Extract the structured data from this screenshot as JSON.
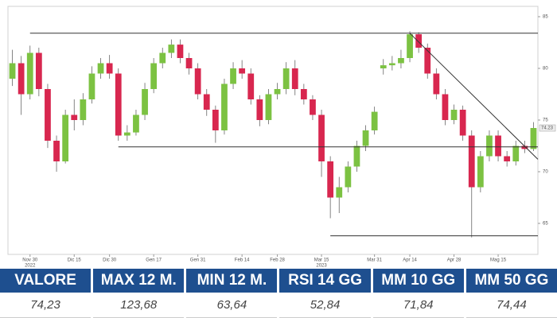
{
  "chart_data": {
    "type": "candlestick",
    "categories": [
      null,
      null,
      "Nov 30",
      null,
      null,
      null,
      null,
      "Dic 15",
      null,
      null,
      null,
      "Dic 30",
      null,
      null,
      null,
      null,
      "Gen 17",
      null,
      null,
      null,
      null,
      "Gen 31",
      null,
      null,
      null,
      null,
      "Feb 14",
      null,
      null,
      null,
      "Feb 28",
      null,
      null,
      null,
      null,
      "Mar 15",
      null,
      null,
      null,
      null,
      null,
      "Mar 31",
      null,
      null,
      null,
      "Apr 14",
      null,
      null,
      null,
      null,
      "Apr 28",
      null,
      null,
      null,
      null,
      "Mag 15",
      null,
      null,
      null,
      null
    ],
    "year_labels": [
      null,
      null,
      "2022",
      null,
      null,
      null,
      null,
      null,
      null,
      null,
      null,
      null,
      null,
      null,
      null,
      null,
      null,
      null,
      null,
      null,
      null,
      null,
      null,
      null,
      null,
      null,
      null,
      null,
      null,
      null,
      null,
      null,
      null,
      null,
      null,
      "2023",
      null,
      null,
      null,
      null,
      null,
      null,
      null,
      null,
      null,
      null,
      null,
      null,
      null,
      null,
      null,
      null,
      null,
      null,
      null,
      null,
      null,
      null,
      null,
      null
    ],
    "open": [
      79,
      80.5,
      77.5,
      81.5,
      78,
      73,
      71,
      75.5,
      75,
      77,
      79.5,
      80.5,
      79.5,
      73.5,
      73.8,
      75.5,
      78,
      80.5,
      81.5,
      82.3,
      81,
      80,
      77.5,
      76,
      74,
      78.5,
      80,
      79.5,
      77,
      75,
      77.5,
      78,
      80,
      78,
      77,
      75.5,
      71,
      67.5,
      68.5,
      70.5,
      72.5,
      74,
      80,
      80.3,
      80.5,
      81,
      83.3,
      82,
      79.5,
      77.5,
      75,
      76,
      73.5,
      68.5,
      71.5,
      73.5,
      71.5,
      71,
      72.5,
      72.2
    ],
    "high": [
      81.8,
      81.2,
      82.2,
      82,
      78.5,
      73.5,
      76,
      77,
      77.6,
      80.2,
      81,
      81.3,
      80,
      74.5,
      76,
      78.6,
      81,
      82,
      82.8,
      82.8,
      81.5,
      80.5,
      78,
      76.4,
      79,
      80.6,
      80.8,
      80,
      77.4,
      78,
      78.6,
      80.6,
      80.8,
      78.5,
      77.4,
      76,
      71.5,
      69.5,
      71,
      73,
      74.5,
      76.3,
      80.9,
      81.2,
      81.8,
      83.6,
      83.5,
      82.4,
      80,
      78,
      76.5,
      76.4,
      74,
      72,
      74,
      74,
      72,
      73,
      73,
      74.8
    ],
    "low": [
      78.3,
      75.5,
      77,
      77.3,
      72.3,
      70,
      70.8,
      74,
      74.5,
      76.6,
      79,
      79,
      73,
      73,
      73.5,
      75,
      77.6,
      80,
      81,
      80.5,
      79.4,
      77,
      75.4,
      72.8,
      73.6,
      78,
      79,
      76.5,
      74.4,
      74.6,
      77,
      77.5,
      77.4,
      76.5,
      75,
      69.5,
      65.5,
      66,
      68,
      70,
      72,
      73.6,
      79.4,
      79.8,
      80,
      80.6,
      81.5,
      79,
      77,
      74.5,
      74.6,
      73,
      63.64,
      68,
      71,
      71,
      70.5,
      70.6,
      71.8,
      72
    ],
    "close": [
      80.5,
      77.5,
      81.5,
      78,
      73,
      71,
      75.5,
      75,
      77,
      79.5,
      80.5,
      79.5,
      73.5,
      73.8,
      75.5,
      78,
      80.5,
      81.5,
      82.3,
      81,
      80,
      77.5,
      76,
      74,
      78.5,
      80,
      79.5,
      77,
      75,
      77.5,
      78,
      80,
      78,
      77,
      75.5,
      71,
      67.5,
      68.5,
      70.5,
      72.5,
      74,
      75.8,
      80.3,
      80.5,
      81,
      83.3,
      82,
      79.5,
      77.5,
      75,
      76,
      73.5,
      68.5,
      71.5,
      73.5,
      71.5,
      71,
      72.5,
      72.2,
      74.23
    ],
    "up_color": "#7cc242",
    "down_color": "#d8274f",
    "ylim": [
      62,
      86
    ],
    "yticks": [
      65,
      70,
      75,
      80,
      85
    ],
    "last_value": {
      "value": 74.23,
      "label": "74.23"
    },
    "lines": [
      {
        "x0": 2,
        "x1": 60,
        "y0": 83.4,
        "y1": 83.4
      },
      {
        "x0": 12,
        "x1": 60,
        "y0": 72.4,
        "y1": 72.4
      },
      {
        "x0": 36,
        "x1": 60,
        "y0": 63.8,
        "y1": 63.8
      },
      {
        "x0": 45,
        "x1": 60,
        "y0": 83.4,
        "y1": 71.2
      }
    ]
  },
  "table": {
    "headers": [
      "VALORE",
      "MAX 12 M.",
      "MIN 12 M.",
      "RSI 14 GG",
      "MM 10 GG",
      "MM 50 GG"
    ],
    "values": [
      "74,23",
      "123,68",
      "63,64",
      "52,84",
      "71,84",
      "74,44"
    ]
  }
}
